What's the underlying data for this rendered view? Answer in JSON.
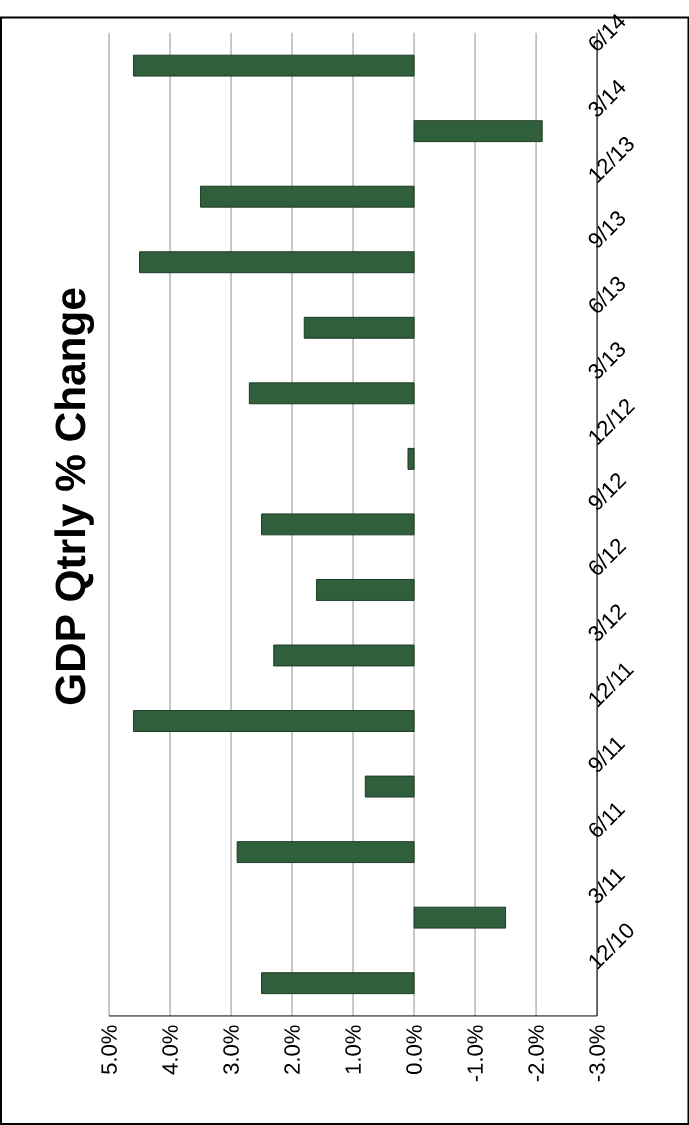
{
  "chart_data": {
    "type": "bar",
    "orientation": "horizontal",
    "title": "GDP Qtrly % Change",
    "categories": [
      "6/14",
      "3/14",
      "12/13",
      "9/13",
      "6/13",
      "3/13",
      "12/12",
      "9/12",
      "6/12",
      "3/12",
      "12/11",
      "9/11",
      "6/11",
      "3/11",
      "12/10"
    ],
    "values": [
      4.6,
      -2.1,
      3.5,
      4.5,
      1.8,
      2.7,
      0.1,
      2.5,
      1.6,
      2.3,
      4.6,
      0.8,
      2.9,
      -1.5,
      2.5
    ],
    "color": "#2f5f3b",
    "xlim": [
      5,
      -3
    ],
    "xticks": [
      {
        "value": 5,
        "label": "5.0%"
      },
      {
        "value": 4,
        "label": "4.0%"
      },
      {
        "value": 3,
        "label": "3.0%"
      },
      {
        "value": 2,
        "label": "2.0%"
      },
      {
        "value": 1,
        "label": "1.0%"
      },
      {
        "value": 0,
        "label": "0.0%"
      },
      {
        "value": -1,
        "label": "-1.0%"
      },
      {
        "value": -2,
        "label": "-2.0%"
      },
      {
        "value": -3,
        "label": "-3.0%"
      }
    ],
    "grid": "x"
  }
}
